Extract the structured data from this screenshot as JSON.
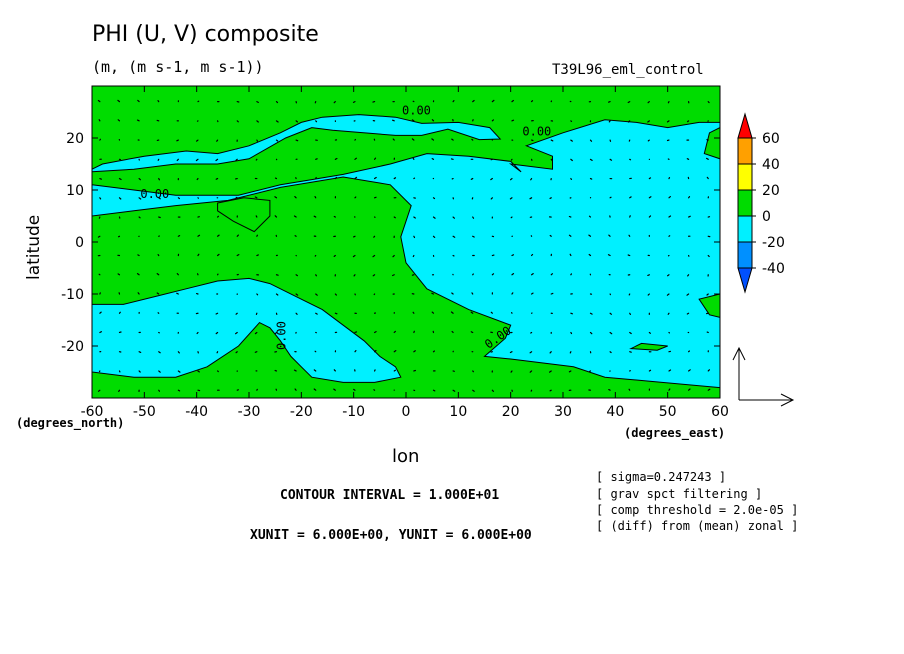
{
  "header": {
    "title": "PHI (U, V) composite",
    "units": "(m, (m s-1, m s-1))",
    "run_id": "T39L96_eml_control"
  },
  "footer": {
    "contour_interval": "CONTOUR INTERVAL = 1.000E+01",
    "vector_units": "XUNIT = 6.000E+00, YUNIT = 6.000E+00",
    "notes": [
      "[ sigma=0.247243 ]",
      "[ grav spct filtering ]",
      "[ comp threshold = 2.0e-05 ]",
      "[ (diff) from (mean) zonal ]"
    ]
  },
  "colors": {
    "cyan": "#00f0ff",
    "green": "#00dc00",
    "yellow": "#ffff00",
    "orange": "#ffa000",
    "red": "#ff0000",
    "blue": "#0090ff",
    "darkblue": "#0050ff"
  },
  "chart_data": {
    "type": "contour",
    "title": "PHI (U, V) composite",
    "subtitle": "(m, (m s-1, m s-1))",
    "xlabel": "lon",
    "ylabel": "latitude",
    "x_units": "(degrees_east)",
    "y_units": "(degrees_north)",
    "xlim": [
      -60,
      60
    ],
    "ylim": [
      -30,
      30
    ],
    "x_ticks": [
      -60,
      -50,
      -40,
      -30,
      -20,
      -10,
      0,
      10,
      20,
      30,
      40,
      50,
      60
    ],
    "x_tick_labels": [
      "-60",
      "-50",
      "-40",
      "-30",
      "-20",
      "-10",
      "0",
      "10",
      "20",
      "30",
      "40",
      "50",
      "60"
    ],
    "y_ticks": [
      -20,
      -10,
      0,
      10,
      20
    ],
    "y_tick_labels": [
      "-20",
      "-10",
      "0",
      "10",
      "20"
    ],
    "contour_labels": [
      {
        "text": "0.00",
        "lon": 2,
        "lat": 24.5
      },
      {
        "text": "0.00",
        "lon": 25,
        "lat": 20.5
      },
      {
        "text": "0.00",
        "lon": -48,
        "lat": 8.5
      },
      {
        "text": "0.00",
        "lon": -23,
        "lat": -18
      },
      {
        "text": "0.00",
        "lon": 18,
        "lat": -19
      }
    ],
    "colorbar": {
      "levels": [
        -40,
        -20,
        0,
        20,
        40,
        60
      ],
      "labels": [
        "60",
        "40",
        "20",
        "0",
        "-20",
        "-40"
      ],
      "bin_colors": [
        "#0050ff",
        "#0090ff",
        "#00f0ff",
        "#00dc00",
        "#ffff00",
        "#ffa000",
        "#ff0000"
      ]
    },
    "regions": {
      "background_range": [
        0,
        10
      ],
      "negative_range": [
        -10,
        0
      ],
      "negative_polygons": [
        [
          [
            -60,
            14
          ],
          [
            -58,
            15
          ],
          [
            -50,
            16.5
          ],
          [
            -42,
            17.5
          ],
          [
            -36,
            17
          ],
          [
            -30,
            18.5
          ],
          [
            -24,
            21
          ],
          [
            -20,
            23
          ],
          [
            -16,
            24
          ],
          [
            -9,
            24.5
          ],
          [
            -2,
            24
          ],
          [
            3,
            22.8
          ],
          [
            10,
            23
          ],
          [
            16,
            22
          ],
          [
            18,
            19.8
          ],
          [
            14,
            19.7
          ],
          [
            8,
            21.7
          ],
          [
            3,
            20.5
          ],
          [
            -2,
            20.5
          ],
          [
            -14,
            21.5
          ],
          [
            -18,
            22
          ],
          [
            -23,
            20
          ],
          [
            -30,
            16
          ],
          [
            -36,
            15
          ],
          [
            -44,
            15
          ],
          [
            -52,
            14
          ],
          [
            -60,
            13.5
          ]
        ],
        [
          [
            -60,
            11
          ],
          [
            -52,
            10
          ],
          [
            -44,
            9
          ],
          [
            -38,
            9
          ],
          [
            -32,
            9
          ],
          [
            -24,
            11
          ],
          [
            -18,
            12
          ],
          [
            -12,
            13
          ],
          [
            -3,
            15
          ],
          [
            4,
            17
          ],
          [
            12,
            16.5
          ],
          [
            20,
            15.5
          ],
          [
            22,
            13.5
          ],
          [
            20,
            15
          ],
          [
            28,
            14
          ],
          [
            28,
            16.5
          ],
          [
            23,
            18.5
          ],
          [
            30,
            21
          ],
          [
            38,
            23.5
          ],
          [
            44,
            23
          ],
          [
            50,
            22
          ],
          [
            56,
            23
          ],
          [
            60,
            23
          ],
          [
            60,
            -28
          ],
          [
            38,
            -26
          ],
          [
            32,
            -24
          ],
          [
            20,
            -22.5
          ],
          [
            15,
            -22
          ],
          [
            19,
            -18.5
          ],
          [
            20,
            -16
          ],
          [
            12,
            -13
          ],
          [
            4,
            -9
          ],
          [
            0,
            -4
          ],
          [
            -1,
            1
          ],
          [
            1,
            7
          ],
          [
            -3,
            11
          ],
          [
            -12,
            12.5
          ],
          [
            -24,
            10.5
          ],
          [
            -34,
            8
          ],
          [
            -44,
            7
          ],
          [
            -52,
            6
          ],
          [
            -60,
            5
          ]
        ],
        [
          [
            -60,
            -12
          ],
          [
            -54,
            -12
          ],
          [
            -48,
            -10.5
          ],
          [
            -42,
            -9
          ],
          [
            -36,
            -7.5
          ],
          [
            -30,
            -7
          ],
          [
            -26,
            -8
          ],
          [
            -20,
            -11
          ],
          [
            -16,
            -13
          ],
          [
            -12,
            -16
          ],
          [
            -8,
            -19
          ],
          [
            -5,
            -22
          ],
          [
            -2,
            -24
          ],
          [
            -1,
            -26
          ],
          [
            -6,
            -27
          ],
          [
            -12,
            -27
          ],
          [
            -18,
            -26
          ],
          [
            -20,
            -24
          ],
          [
            -22,
            -22
          ],
          [
            -24,
            -19
          ],
          [
            -26,
            -16.5
          ],
          [
            -28,
            -15.5
          ],
          [
            -32,
            -20
          ],
          [
            -38,
            -24
          ],
          [
            -44,
            -26
          ],
          [
            -52,
            -26
          ],
          [
            -60,
            -25
          ]
        ]
      ],
      "green_islands": [
        [
          [
            -36,
            7.5
          ],
          [
            -31,
            8.5
          ],
          [
            -26,
            8
          ],
          [
            -26,
            5
          ],
          [
            -29,
            2
          ],
          [
            -33,
            4
          ],
          [
            -36,
            6
          ]
        ],
        [
          [
            58,
            21
          ],
          [
            57,
            17
          ],
          [
            60,
            16
          ],
          [
            60,
            22
          ]
        ],
        [
          [
            50,
            -20
          ],
          [
            45,
            -19.5
          ],
          [
            43,
            -20.5
          ],
          [
            48,
            -20.8
          ]
        ],
        [
          [
            60,
            -10
          ],
          [
            56,
            -11
          ],
          [
            58,
            -14
          ],
          [
            60,
            -14.5
          ]
        ]
      ],
      "contour_lines": "0.00"
    },
    "vectors": {
      "grid_spacing_lon": 3.75,
      "grid_spacing_lat": 3.7,
      "reference_arrow": {
        "u": 6,
        "v": 6,
        "units": "m s-1"
      }
    }
  }
}
